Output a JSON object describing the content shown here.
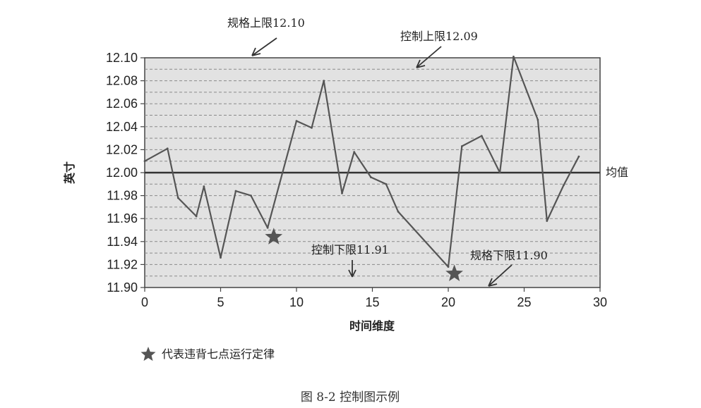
{
  "chart_data": {
    "type": "line",
    "title": "",
    "xlabel": "时间维度",
    "ylabel": "英寸",
    "xlim": [
      0,
      30
    ],
    "ylim": [
      11.9,
      12.1
    ],
    "xticks": [
      0,
      5,
      10,
      15,
      20,
      25,
      30
    ],
    "yticks": [
      "12.10",
      "12.08",
      "12.06",
      "12.04",
      "12.02",
      "12.00",
      "11.98",
      "11.96",
      "11.94",
      "11.92",
      "11.90"
    ],
    "grid": true,
    "series": [
      {
        "x": [
          0,
          1.5,
          2.2,
          3.4,
          3.9,
          5.0,
          6.0,
          7.0,
          8.1,
          10.0,
          11.0,
          11.8,
          13.0,
          13.8,
          14.9,
          15.9,
          16.7,
          20.0,
          20.9,
          22.2,
          23.4,
          24.3,
          25.9,
          26.5,
          27.6,
          28.6
        ],
        "y": [
          12.01,
          12.021,
          11.978,
          11.962,
          11.988,
          11.926,
          11.984,
          11.98,
          11.952,
          12.045,
          12.039,
          12.08,
          11.982,
          12.018,
          11.996,
          11.99,
          11.966,
          11.918,
          12.023,
          12.032,
          12.0,
          12.101,
          12.046,
          11.958,
          11.989,
          12.014
        ]
      }
    ],
    "reference_lines": [
      {
        "value": 12.1,
        "label": "规格上限12.10"
      },
      {
        "value": 12.09,
        "label": "控制上限12.09"
      },
      {
        "value": 12.0,
        "label": "均值"
      },
      {
        "value": 11.91,
        "label": "控制下限11.91"
      },
      {
        "value": 11.9,
        "label": "规格下限11.90"
      }
    ],
    "markers": [
      {
        "x": 8.5,
        "y": 11.944
      },
      {
        "x": 20.4,
        "y": 11.912
      }
    ],
    "legend": {
      "label": "代表违背七点运行定律",
      "placement": "bottom-left"
    },
    "caption": "图 8-2   控制图示例"
  }
}
